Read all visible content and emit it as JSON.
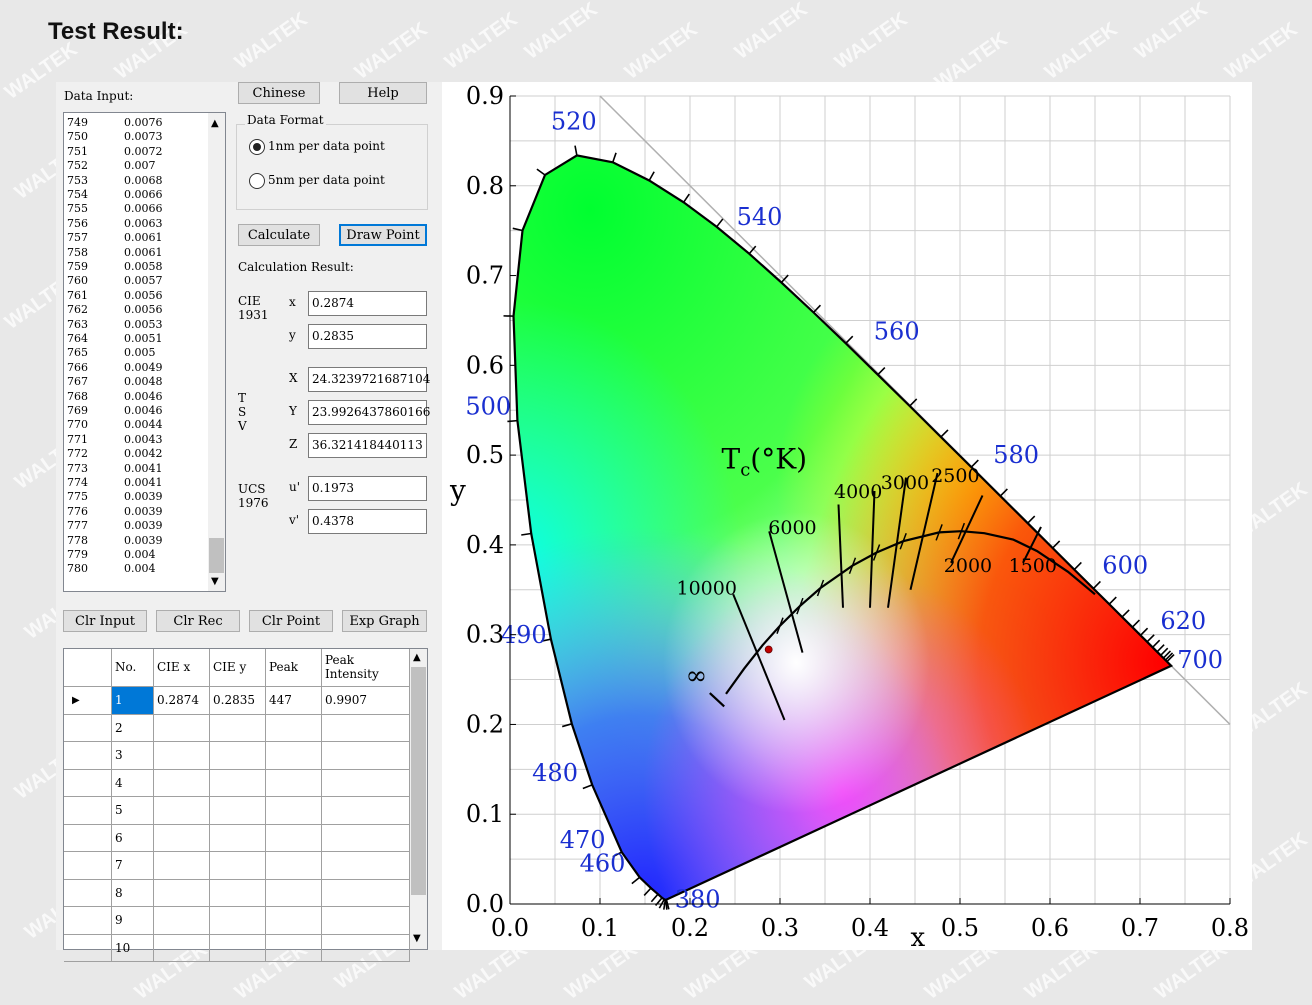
{
  "page_title": "Test Result:",
  "watermark": "WALTEK",
  "left": {
    "data_input_label": "Data Input:",
    "chinese_button": "Chinese",
    "help_button": "Help",
    "data_format_label": "Data Format",
    "radio_1nm": "1nm per data point",
    "radio_5nm": "5nm per data point",
    "calculate_button": "Calculate",
    "draw_point_button": "Draw Point",
    "calc_result_label": "Calculation Result:",
    "cie1931_label": "CIE\n1931",
    "x_label": "x",
    "x_value": "0.2874",
    "y_label": "y",
    "y_value": "0.2835",
    "tsv_label": "T\nS\nV",
    "X_label": "X",
    "X_value": "24.3239721687104",
    "Y_label": "Y",
    "Y_value": "23.9926437860166",
    "Z_label": "Z",
    "Z_value": "36.321418440113",
    "ucs_label": "UCS\n1976",
    "u_label": "u'",
    "u_value": "0.1973",
    "v_label": "v'",
    "v_value": "0.4378",
    "clr_input_button": "Clr Input",
    "clr_rec_button": "Clr Rec",
    "clr_point_button": "Clr Point",
    "exp_graph_button": "Exp Graph"
  },
  "data_rows": [
    [
      "749",
      "0.0076"
    ],
    [
      "750",
      "0.0073"
    ],
    [
      "751",
      "0.0072"
    ],
    [
      "752",
      "0.007"
    ],
    [
      "753",
      "0.0068"
    ],
    [
      "754",
      "0.0066"
    ],
    [
      "755",
      "0.0066"
    ],
    [
      "756",
      "0.0063"
    ],
    [
      "757",
      "0.0061"
    ],
    [
      "758",
      "0.0061"
    ],
    [
      "759",
      "0.0058"
    ],
    [
      "760",
      "0.0057"
    ],
    [
      "761",
      "0.0056"
    ],
    [
      "762",
      "0.0056"
    ],
    [
      "763",
      "0.0053"
    ],
    [
      "764",
      "0.0051"
    ],
    [
      "765",
      "0.005"
    ],
    [
      "766",
      "0.0049"
    ],
    [
      "767",
      "0.0048"
    ],
    [
      "768",
      "0.0046"
    ],
    [
      "769",
      "0.0046"
    ],
    [
      "770",
      "0.0044"
    ],
    [
      "771",
      "0.0043"
    ],
    [
      "772",
      "0.0042"
    ],
    [
      "773",
      "0.0041"
    ],
    [
      "774",
      "0.0041"
    ],
    [
      "775",
      "0.0039"
    ],
    [
      "776",
      "0.0039"
    ],
    [
      "777",
      "0.0039"
    ],
    [
      "778",
      "0.0039"
    ],
    [
      "779",
      "0.004"
    ],
    [
      "780",
      "0.004"
    ]
  ],
  "results_table": {
    "headers": [
      "No.",
      "CIE x",
      "CIE y",
      "Peak",
      "Peak\nIntensity"
    ],
    "rows": [
      [
        "1",
        "0.2874",
        "0.2835",
        "447",
        "0.9907"
      ],
      [
        "2",
        "",
        "",
        "",
        ""
      ],
      [
        "3",
        "",
        "",
        "",
        ""
      ],
      [
        "4",
        "",
        "",
        "",
        ""
      ],
      [
        "5",
        "",
        "",
        "",
        ""
      ],
      [
        "6",
        "",
        "",
        "",
        ""
      ],
      [
        "7",
        "",
        "",
        "",
        ""
      ],
      [
        "8",
        "",
        "",
        "",
        ""
      ],
      [
        "9",
        "",
        "",
        "",
        ""
      ],
      [
        "10",
        "",
        "",
        "",
        ""
      ]
    ]
  },
  "chart_data": {
    "type": "scatter",
    "xlabel": "x",
    "ylabel": "y",
    "xlim": [
      0.0,
      0.8
    ],
    "ylim": [
      0.0,
      0.9
    ],
    "x_ticks": [
      "0.0",
      "0.1",
      "0.2",
      "0.3",
      "0.4",
      "0.5",
      "0.6",
      "0.7",
      "0.8"
    ],
    "y_ticks": [
      "0.0",
      "0.1",
      "0.2",
      "0.3",
      "0.4",
      "0.5",
      "0.6",
      "0.7",
      "0.8",
      "0.9"
    ],
    "grid": true,
    "wavelength_labels": [
      {
        "label": "380",
        "x": 0.1741,
        "y": 0.005
      },
      {
        "label": "460",
        "x": 0.144,
        "y": 0.0297
      },
      {
        "label": "470",
        "x": 0.1241,
        "y": 0.0578
      },
      {
        "label": "480",
        "x": 0.0913,
        "y": 0.1327
      },
      {
        "label": "490",
        "x": 0.0454,
        "y": 0.295
      },
      {
        "label": "500",
        "x": 0.0082,
        "y": 0.5384
      },
      {
        "label": "520",
        "x": 0.0743,
        "y": 0.8338
      },
      {
        "label": "540",
        "x": 0.2296,
        "y": 0.7543
      },
      {
        "label": "560",
        "x": 0.3731,
        "y": 0.6245
      },
      {
        "label": "580",
        "x": 0.5125,
        "y": 0.4866
      },
      {
        "label": "600",
        "x": 0.627,
        "y": 0.3725
      },
      {
        "label": "620",
        "x": 0.6915,
        "y": 0.3083
      },
      {
        "label": "700",
        "x": 0.7347,
        "y": 0.2653
      }
    ],
    "locus_title": "T",
    "locus_title_sub": "c",
    "locus_title_unit": "(°K)",
    "cct_labels": [
      "∞",
      "10000",
      "6000",
      "4000",
      "3000",
      "2500",
      "2000",
      "1500"
    ],
    "points": [
      {
        "x": 0.2874,
        "y": 0.2835
      }
    ]
  }
}
